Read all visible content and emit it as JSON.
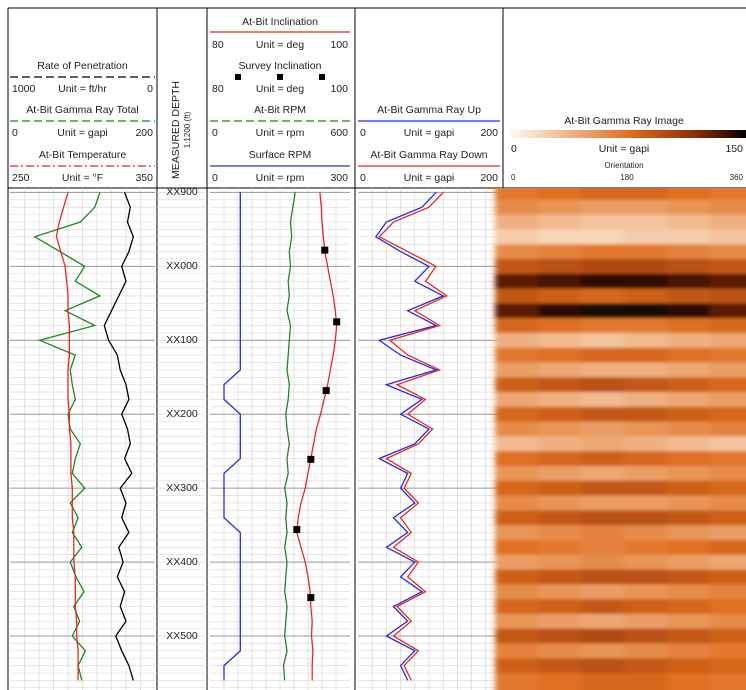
{
  "depth_track": {
    "title": "MEASURED DEPTH",
    "scale": "1:1200 (ft)"
  },
  "chart_data": {
    "type": "log",
    "ylim": [
      -106,
      573
    ],
    "yticks": [
      {
        "value": -100,
        "label": "XX900"
      },
      {
        "value": 0,
        "label": "XX000"
      },
      {
        "value": 100,
        "label": "XX100"
      },
      {
        "value": 200,
        "label": "XX200"
      },
      {
        "value": 300,
        "label": "XX300"
      },
      {
        "value": 400,
        "label": "XX400"
      },
      {
        "value": 500,
        "label": "XX500"
      }
    ],
    "depths": [
      -100,
      -80,
      -60,
      -40,
      -20,
      0,
      20,
      40,
      60,
      80,
      100,
      120,
      140,
      160,
      180,
      200,
      220,
      240,
      260,
      280,
      300,
      320,
      340,
      360,
      380,
      400,
      420,
      440,
      460,
      480,
      500,
      520,
      540,
      560
    ],
    "tracks": [
      {
        "curves": [
          {
            "name": "Rate of Penetration",
            "unit": "Unit = ft/hr",
            "color": "#000000",
            "style": "dashed",
            "xlim": [
              1000,
              0
            ],
            "values": [
              210,
              170,
              190,
              150,
              180,
              230,
              200,
              250,
              300,
              350,
              320,
              260,
              240,
              200,
              180,
              230,
              190,
              170,
              210,
              160,
              240,
              200,
              230,
              180,
              250,
              220,
              260,
              210,
              240,
              200,
              270,
              230,
              180,
              150
            ]
          },
          {
            "name": "At-Bit Gamma Ray Total",
            "unit": "Unit = gapi",
            "color": "#1a8a1a",
            "style": "dashed",
            "xlim": [
              0,
              200
            ],
            "values": [
              124,
              117,
              97,
              34,
              69,
              103,
              90,
              124,
              76,
              117,
              41,
              90,
              83,
              86,
              90,
              80,
              83,
              97,
              90,
              86,
              103,
              83,
              94,
              86,
              99,
              83,
              91,
              102,
              88,
              96,
              86,
              104,
              94,
              99
            ]
          },
          {
            "name": "At-Bit Temperature",
            "unit": "Unit = °F",
            "color": "#e8281e",
            "style": "dashdot",
            "xlim": [
              250,
              350
            ],
            "values": [
              290,
              287,
              284,
              282,
              285,
              288,
              289,
              290,
              290,
              291,
              291,
              291,
              290,
              290,
              290,
              291,
              291,
              292,
              292,
              292,
              293,
              293,
              293,
              294,
              294,
              294,
              295,
              295,
              295,
              296,
              296,
              297,
              297,
              297
            ]
          }
        ]
      },
      {
        "curves": [
          {
            "name": "At-Bit Inclination",
            "unit": "Unit = deg",
            "color": "#e8281e",
            "style": "solid",
            "xlim": [
              80,
              100
            ],
            "values": [
              95.7,
              95.9,
              96.0,
              96.2,
              96.4,
              96.8,
              97.2,
              97.6,
              97.9,
              98.1,
              97.9,
              97.6,
              97.2,
              96.8,
              96.3,
              95.8,
              95.2,
              94.8,
              94.4,
              94.0,
              93.6,
              93.0,
              92.6,
              92.4,
              93.0,
              93.6,
              94.0,
              94.3,
              94.4,
              94.6,
              94.5,
              94.7,
              94.6,
              94.6
            ]
          },
          {
            "name": "At-Bit RPM",
            "unit": "Unit = rpm",
            "color": "#1a8a1a",
            "style": "dashed",
            "xlim": [
              0,
              600
            ],
            "values": [
              365,
              355,
              345,
              350,
              340,
              345,
              335,
              340,
              330,
              345,
              340,
              335,
              330,
              340,
              335,
              325,
              330,
              340,
              330,
              335,
              320,
              330,
              325,
              330,
              320,
              330,
              325,
              320,
              330,
              325,
              320,
              330,
              315,
              320
            ]
          },
          {
            "name": "Surface RPM",
            "unit": "Unit = rpm",
            "color": "#1f2ee0",
            "style": "solid",
            "xlim": [
              0,
              300
            ],
            "values": [
              65,
              65,
              65,
              65,
              65,
              65,
              65,
              65,
              65,
              65,
              65,
              65,
              65,
              30,
              30,
              65,
              65,
              65,
              65,
              30,
              30,
              30,
              30,
              65,
              65,
              65,
              65,
              65,
              65,
              65,
              65,
              65,
              30,
              30
            ]
          }
        ]
      },
      {
        "curves": [
          {
            "name": "At-Bit Gamma Ray Up",
            "unit": "Unit = gapi",
            "color": "#1f2ee0",
            "style": "solid",
            "xlim": [
              0,
              200
            ],
            "values": [
              110,
              90,
              40,
              25,
              60,
              100,
              80,
              120,
              70,
              110,
              30,
              60,
              110,
              40,
              90,
              60,
              100,
              80,
              30,
              70,
              60,
              80,
              50,
              70,
              40,
              80,
              60,
              90,
              50,
              70,
              40,
              80,
              60,
              70
            ]
          },
          {
            "name": "At-Bit Gamma Ray Down",
            "unit": "Unit = gapi",
            "color": "#e8281e",
            "style": "solid",
            "xlim": [
              0,
              200
            ],
            "values": [
              120,
              100,
              50,
              30,
              70,
              110,
              95,
              125,
              80,
              115,
              45,
              70,
              115,
              55,
              95,
              70,
              105,
              85,
              40,
              75,
              65,
              85,
              60,
              75,
              50,
              85,
              70,
              95,
              55,
              75,
              50,
              85,
              65,
              75
            ]
          }
        ]
      }
    ],
    "survey": {
      "name": "Survey Inclination",
      "unit": "Unit = deg",
      "color": "#000000",
      "xlim": [
        80,
        100
      ],
      "depths": [
        -22,
        75,
        168,
        261,
        356,
        448
      ],
      "values": [
        96.4,
        98.1,
        96.6,
        94.4,
        92.4,
        94.4
      ]
    },
    "image": {
      "title": "At-Bit Gamma Ray Image",
      "unit": "Unit = gapi",
      "xlim": [
        0,
        150
      ],
      "orientation_label": "Orientation",
      "orientation_ticks": [
        0,
        180,
        360
      ],
      "rows": [
        [
          70,
          75,
          80,
          80,
          75,
          70
        ],
        [
          60,
          55,
          50,
          50,
          55,
          60
        ],
        [
          40,
          35,
          30,
          30,
          35,
          40
        ],
        [
          25,
          20,
          20,
          25,
          25,
          30
        ],
        [
          60,
          65,
          70,
          70,
          65,
          60
        ],
        [
          90,
          95,
          100,
          100,
          95,
          90
        ],
        [
          130,
          135,
          140,
          140,
          135,
          130
        ],
        [
          90,
          85,
          80,
          85,
          90,
          95
        ],
        [
          130,
          140,
          145,
          145,
          140,
          130
        ],
        [
          80,
          75,
          70,
          70,
          75,
          80
        ],
        [
          40,
          35,
          30,
          35,
          40,
          45
        ],
        [
          70,
          75,
          80,
          80,
          75,
          70
        ],
        [
          50,
          45,
          40,
          40,
          45,
          50
        ],
        [
          85,
          90,
          95,
          90,
          85,
          80
        ],
        [
          45,
          40,
          35,
          40,
          45,
          50
        ],
        [
          80,
          85,
          90,
          90,
          85,
          80
        ],
        [
          60,
          55,
          50,
          55,
          60,
          65
        ],
        [
          35,
          40,
          45,
          40,
          35,
          30
        ],
        [
          75,
          80,
          85,
          80,
          75,
          70
        ],
        [
          55,
          50,
          45,
          50,
          55,
          60
        ],
        [
          80,
          85,
          90,
          90,
          85,
          80
        ],
        [
          60,
          55,
          50,
          50,
          55,
          60
        ],
        [
          85,
          90,
          95,
          95,
          90,
          85
        ],
        [
          55,
          60,
          65,
          60,
          55,
          50
        ],
        [
          75,
          70,
          65,
          70,
          75,
          80
        ],
        [
          50,
          55,
          60,
          55,
          50,
          45
        ],
        [
          85,
          90,
          95,
          95,
          90,
          85
        ],
        [
          60,
          55,
          50,
          55,
          60,
          65
        ],
        [
          80,
          85,
          90,
          85,
          80,
          75
        ],
        [
          55,
          50,
          45,
          50,
          55,
          60
        ],
        [
          90,
          95,
          100,
          95,
          90,
          85
        ],
        [
          65,
          60,
          55,
          60,
          65,
          70
        ],
        [
          85,
          90,
          95,
          90,
          85,
          80
        ],
        [
          70,
          75,
          80,
          80,
          75,
          70
        ]
      ]
    }
  }
}
